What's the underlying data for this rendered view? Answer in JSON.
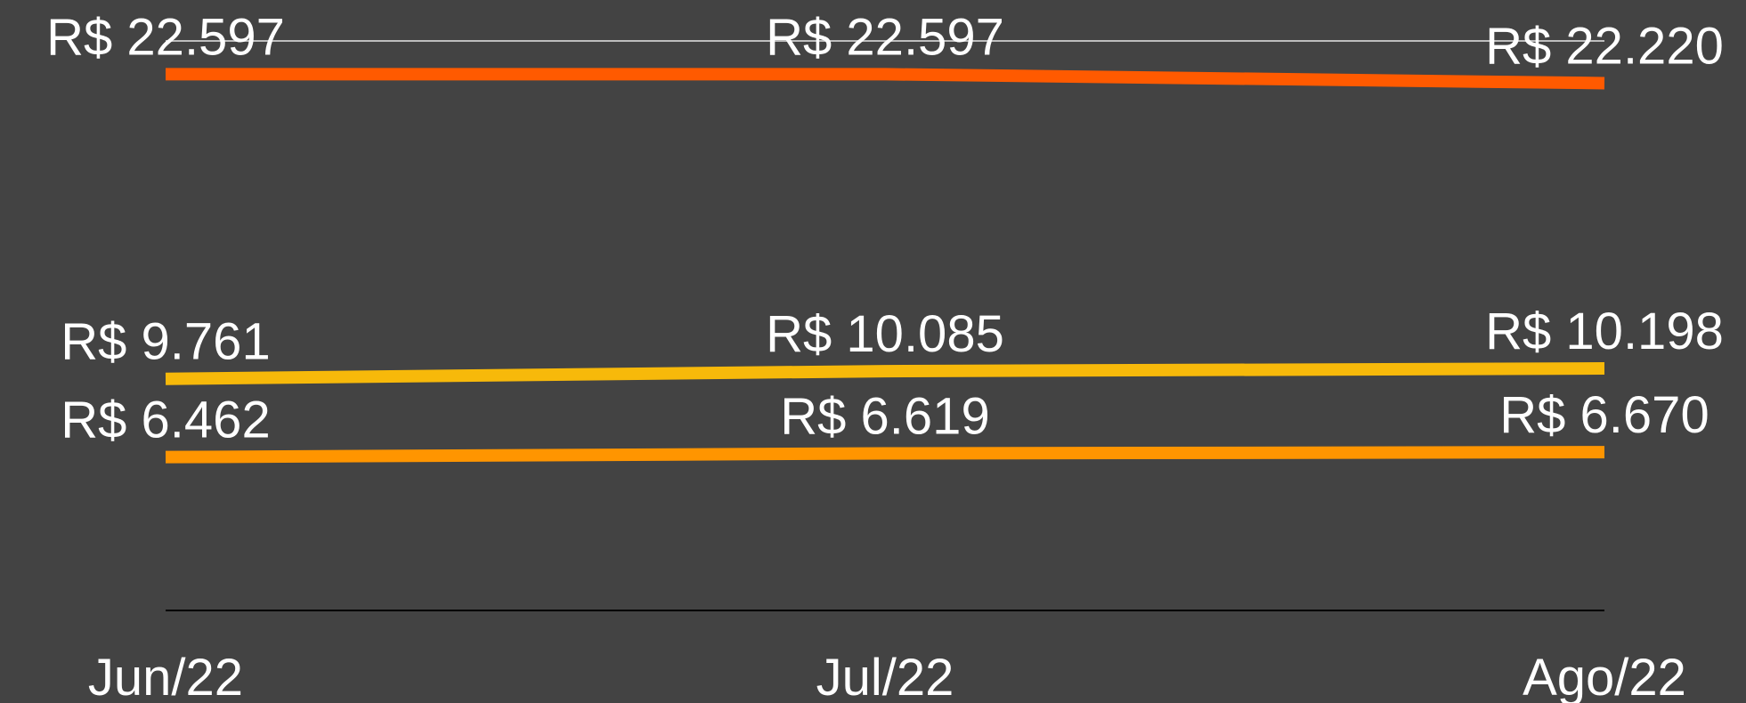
{
  "chart_data": {
    "type": "line",
    "categories": [
      "Jun/22",
      "Jul/22",
      "Ago/22"
    ],
    "series": [
      {
        "color": "#ff5a00",
        "values": [
          22597,
          22597,
          22220
        ],
        "value_labels": [
          "R$ 22.597",
          "R$ 22.597",
          "R$ 22.220"
        ]
      },
      {
        "color": "#f7b90a",
        "values": [
          9761,
          10085,
          10198
        ],
        "value_labels": [
          "R$ 9.761",
          "R$ 10.085",
          "R$ 10.198"
        ]
      },
      {
        "color": "#ff9500",
        "values": [
          6462,
          6619,
          6670
        ],
        "value_labels": [
          "R$ 6.462",
          "R$ 6.619",
          "R$ 6.670"
        ]
      }
    ],
    "ylim": [
      0,
      24000
    ],
    "yticks": [
      0,
      24000
    ],
    "grid": true
  }
}
